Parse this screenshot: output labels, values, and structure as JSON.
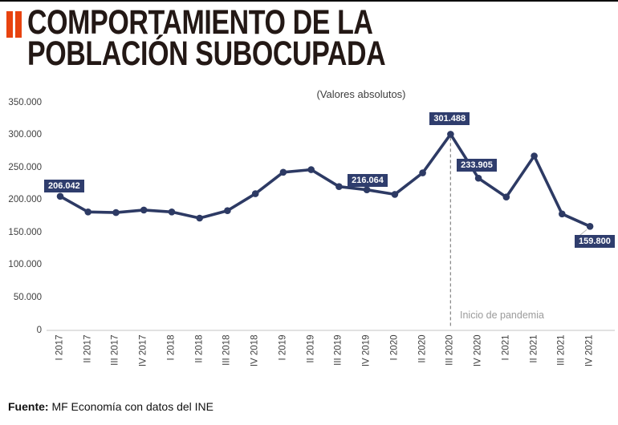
{
  "header": {
    "title_line1": "COMPORTAMIENTO DE LA",
    "title_line2": "POBLACIÓN SUBOCUPADA"
  },
  "chart_data": {
    "type": "line",
    "title": "COMPORTAMIENTO DE LA POBLACIÓN SUBOCUPADA",
    "subtitle": "(Valores absolutos)",
    "categories": [
      "I 2017",
      "II 2017",
      "III 2017",
      "IV 2017",
      "I 2018",
      "II 2018",
      "III 2018",
      "IV 2018",
      "I 2019",
      "II 2019",
      "III 2019",
      "IV 2019",
      "I 2020",
      "II 2020",
      "III 2020",
      "IV 2020",
      "I 2021",
      "II 2021",
      "III 2021",
      "IV 2021"
    ],
    "values": [
      206042,
      182000,
      181000,
      185000,
      182000,
      172500,
      184000,
      210000,
      243000,
      247000,
      221000,
      216064,
      209000,
      242000,
      301488,
      233905,
      205000,
      268000,
      179000,
      159800
    ],
    "labeled_points": [
      {
        "index": 0,
        "label": "206.042"
      },
      {
        "index": 11,
        "label": "216.064"
      },
      {
        "index": 14,
        "label": "301.488"
      },
      {
        "index": 15,
        "label": "233.905"
      },
      {
        "index": 19,
        "label": "159.800"
      }
    ],
    "y_tick_labels": [
      "350.000",
      "300.000",
      "250.000",
      "200.000",
      "150.000",
      "100.000",
      "50.000",
      "0"
    ],
    "y_tick_values": [
      350000,
      300000,
      250000,
      200000,
      150000,
      100000,
      50000,
      0
    ],
    "ylim": [
      0,
      350000
    ],
    "grid": false,
    "legend": false,
    "annotation": {
      "text": "Inicio de pandemia",
      "category": "III 2020",
      "category_index": 14
    },
    "colors": {
      "line": "#2d3a64",
      "marker": "#2d3a64",
      "label_box": "#2f3d6d",
      "label_text": "#ffffff",
      "axis_text": "#404040",
      "axis_line": "#d9d9d9",
      "dashed_line": "#8c8c8c",
      "callout_line": "#b3b3b3",
      "annotation_text": "#9b9b9b",
      "accent": "#e8430f"
    }
  },
  "footer": {
    "source_label": "Fuente:",
    "source_text": "MF Economía con datos del INE"
  }
}
